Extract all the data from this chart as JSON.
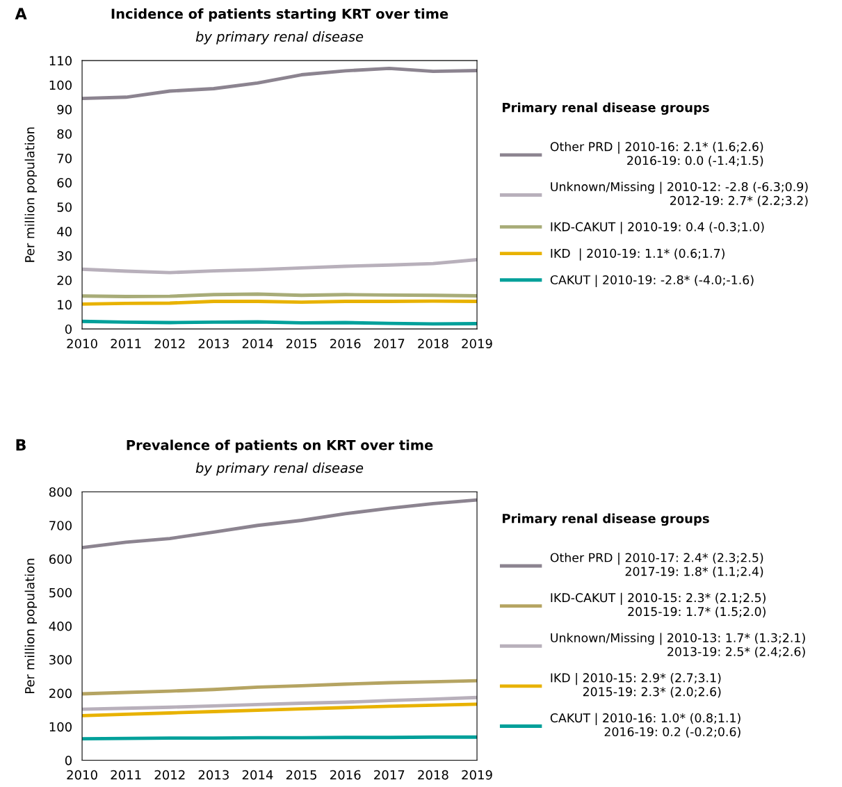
{
  "chart_data": [
    {
      "type": "line",
      "title": "Incidence of patients starting KRT over time",
      "subtitle": "by primary renal disease",
      "ylabel": "Per million population",
      "annotations": [
        "A"
      ],
      "x": [
        2010,
        2011,
        2012,
        2013,
        2014,
        2015,
        2016,
        2017,
        2018,
        2019
      ],
      "xlim": [
        2010,
        2019
      ],
      "xticks": [
        2010,
        2011,
        2012,
        2013,
        2014,
        2015,
        2016,
        2017,
        2018,
        2019
      ],
      "ylim": [
        0,
        110
      ],
      "yticks": [
        0,
        10,
        20,
        30,
        40,
        50,
        60,
        70,
        80,
        90,
        100,
        110
      ],
      "grid": false,
      "legend": "right",
      "legend_title": "Primary renal disease groups",
      "line_style": "solid",
      "series": [
        {
          "name": "Other PRD | 2010-16: 2.1* (1.6;2.6)\n2016-19: 0.0 (-1.4;1.5)",
          "color": "#8c8490",
          "values": [
            94.5,
            95,
            97.5,
            98.5,
            100.8,
            104.2,
            105.8,
            106.8,
            105.6,
            105.9
          ]
        },
        {
          "name": "Unknown/Missing | 2010-12: -2.8 (-6.3;0.9)\n2012-19: 2.7* (2.2;3.2)",
          "color": "#b8b0bb",
          "values": [
            24.5,
            23.7,
            23.1,
            23.8,
            24.3,
            25,
            25.7,
            26.2,
            26.8,
            28.4
          ]
        },
        {
          "name": "IKD-CAKUT | 2010-19: 0.4 (-0.3;1.0)",
          "color": "#a8ac78",
          "values": [
            13.5,
            13.3,
            13.4,
            14.1,
            14.3,
            13.8,
            14.1,
            13.9,
            13.8,
            13.6
          ]
        },
        {
          "name": "IKD  | 2010-19: 1.1* (0.6;1.7)",
          "color": "#e8b200",
          "values": [
            10.2,
            10.5,
            10.6,
            11.3,
            11.3,
            11.0,
            11.3,
            11.3,
            11.4,
            11.3
          ]
        },
        {
          "name": "CAKUT | 2010-19: -2.8* (-4.0;-1.6)",
          "color": "#00a09a",
          "values": [
            3.1,
            2.8,
            2.6,
            2.8,
            2.9,
            2.5,
            2.6,
            2.3,
            2.1,
            2.2
          ]
        }
      ]
    },
    {
      "type": "line",
      "title": "Prevalence of patients on KRT over time",
      "subtitle": "by primary renal disease",
      "ylabel": "Per million population",
      "annotations": [
        "B"
      ],
      "x": [
        2010,
        2011,
        2012,
        2013,
        2014,
        2015,
        2016,
        2017,
        2018,
        2019
      ],
      "xlim": [
        2010,
        2019
      ],
      "xticks": [
        2010,
        2011,
        2012,
        2013,
        2014,
        2015,
        2016,
        2017,
        2018,
        2019
      ],
      "ylim": [
        0,
        800
      ],
      "yticks": [
        0,
        100,
        200,
        300,
        400,
        500,
        600,
        700,
        800
      ],
      "grid": false,
      "legend": "right",
      "legend_title": "Primary renal disease groups",
      "line_style": "solid",
      "series": [
        {
          "name": "Other PRD | 2010-17: 2.4* (2.3;2.5)\n2017-19: 1.8* (1.1;2.4)",
          "color": "#8c8490",
          "values": [
            634,
            650,
            661,
            680,
            700,
            715,
            735,
            751,
            765,
            776
          ]
        },
        {
          "name": "IKD-CAKUT | 2010-15: 2.3* (2.1;2.5)\n2015-19: 1.7* (1.5;2.0)",
          "color": "#b5a462",
          "values": [
            198,
            202,
            206,
            211,
            218,
            222,
            227,
            231,
            234,
            237
          ]
        },
        {
          "name": "Unknown/Missing | 2010-13: 1.7* (1.3;2.1)\n2013-19: 2.5* (2.4;2.6)",
          "color": "#b8b0bb",
          "values": [
            152,
            155,
            158,
            162,
            166,
            170,
            173,
            178,
            182,
            187
          ]
        },
        {
          "name": "IKD | 2010-15: 2.9* (2.7;3.1)\n2015-19: 2.3* (2.0;2.6)",
          "color": "#e8b200",
          "values": [
            133,
            137,
            141,
            145,
            149,
            153,
            157,
            161,
            164,
            167
          ]
        },
        {
          "name": "CAKUT | 2010-16: 1.0* (0.8;1.1)\n2016-19: 0.2 (-0.2;0.6)",
          "color": "#00a09a",
          "values": [
            64,
            65,
            66,
            66,
            67,
            67,
            68,
            68,
            69,
            69
          ]
        }
      ]
    }
  ]
}
